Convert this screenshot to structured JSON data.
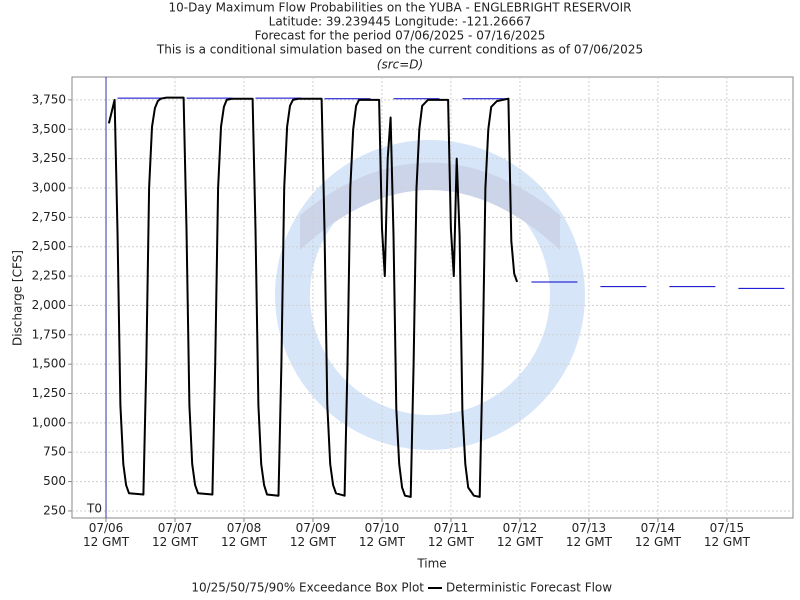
{
  "chart_data": {
    "type": "line",
    "title": "10-Day Maximum Flow Probabilities on the YUBA - ENGLEBRIGHT RESERVOIR",
    "subtitles": [
      "Latitude: 39.239445 Longitude: -121.26667",
      "Forecast for the period 07/06/2025 - 07/16/2025",
      "This is a conditional simulation based on the current conditions as of 07/06/2025",
      "(src=D)"
    ],
    "xlabel": "Time",
    "ylabel": "Discharge [CFS]",
    "t0": "07/06 12:00",
    "t0_label": "T0",
    "xlim": [
      "07/06 00:10",
      "07/16 11:00"
    ],
    "ylim": [
      190,
      3945
    ],
    "grid": true,
    "xticks": [
      {
        "value": "07/06 12:00",
        "label": "07/06\n12 GMT"
      },
      {
        "value": "07/07 12:00",
        "label": "07/07\n12 GMT"
      },
      {
        "value": "07/08 12:00",
        "label": "07/08\n12 GMT"
      },
      {
        "value": "07/09 12:00",
        "label": "07/09\n12 GMT"
      },
      {
        "value": "07/10 12:00",
        "label": "07/10\n12 GMT"
      },
      {
        "value": "07/11 12:00",
        "label": "07/11\n12 GMT"
      },
      {
        "value": "07/12 12:00",
        "label": "07/12\n12 GMT"
      },
      {
        "value": "07/13 12:00",
        "label": "07/13\n12 GMT"
      },
      {
        "value": "07/14 12:00",
        "label": "07/14\n12 GMT"
      },
      {
        "value": "07/15 12:00",
        "label": "07/15\n12 GMT"
      }
    ],
    "yticks": [
      250,
      500,
      750,
      {
        "value": 1000,
        "label": "1,000"
      },
      {
        "value": 1250,
        "label": "1,250"
      },
      {
        "value": 1500,
        "label": "1,500"
      },
      {
        "value": 1750,
        "label": "1,750"
      },
      {
        "value": 2000,
        "label": "2,000"
      },
      {
        "value": 2250,
        "label": "2,250"
      },
      {
        "value": 2500,
        "label": "2,500"
      },
      {
        "value": 2750,
        "label": "2,750"
      },
      {
        "value": 3000,
        "label": "3,000"
      },
      {
        "value": 3250,
        "label": "3,250"
      },
      {
        "value": 3500,
        "label": "3,500"
      },
      {
        "value": 3750,
        "label": "3,750"
      }
    ],
    "series": [
      {
        "name": "10/25/50/75/90% Exceedance Box Plot",
        "color": "#0000cc",
        "boxes": [
          {
            "start": "07/06 16:00",
            "end": "07/07 08:00",
            "value": 3765
          },
          {
            "start": "07/07 16:00",
            "end": "07/08 08:00",
            "value": 3765
          },
          {
            "start": "07/08 16:00",
            "end": "07/09 08:00",
            "value": 3765
          },
          {
            "start": "07/09 16:00",
            "end": "07/10 08:00",
            "value": 3760
          },
          {
            "start": "07/10 16:00",
            "end": "07/11 08:00",
            "value": 3760
          },
          {
            "start": "07/11 16:00",
            "end": "07/12 08:00",
            "value": 3760
          },
          {
            "start": "07/12 16:00",
            "end": "07/13 08:00",
            "value": 2200
          },
          {
            "start": "07/13 16:00",
            "end": "07/14 08:00",
            "value": 2160
          },
          {
            "start": "07/14 16:00",
            "end": "07/15 08:00",
            "value": 2160
          },
          {
            "start": "07/15 16:00",
            "end": "07/16 08:00",
            "value": 2145
          }
        ]
      },
      {
        "name": "Deterministic Forecast Flow",
        "color": "#000000",
        "x": [
          "07/06 13:00",
          "07/06 15:00",
          "07/06 16:00",
          "07/06 17:00",
          "07/06 18:00",
          "07/06 19:00",
          "07/06 20:00",
          "07/07 01:00",
          "07/07 02:00",
          "07/07 03:00",
          "07/07 04:00",
          "07/07 05:00",
          "07/07 06:00",
          "07/07 07:00",
          "07/07 09:00",
          "07/07 15:00",
          "07/07 16:00",
          "07/07 17:00",
          "07/07 18:00",
          "07/07 19:00",
          "07/07 20:00",
          "07/08 01:00",
          "07/08 02:00",
          "07/08 03:00",
          "07/08 04:00",
          "07/08 05:00",
          "07/08 06:00",
          "07/08 08:00",
          "07/08 15:00",
          "07/08 16:00",
          "07/08 17:00",
          "07/08 18:00",
          "07/08 19:00",
          "07/08 20:00",
          "07/09 00:00",
          "07/09 01:00",
          "07/09 02:00",
          "07/09 03:00",
          "07/09 04:00",
          "07/09 05:00",
          "07/09 07:00",
          "07/09 15:00",
          "07/09 16:00",
          "07/09 17:00",
          "07/09 18:00",
          "07/09 19:00",
          "07/09 20:00",
          "07/09 23:00",
          "07/10 00:00",
          "07/10 01:00",
          "07/10 02:00",
          "07/10 03:00",
          "07/10 04:00",
          "07/10 11:00",
          "07/10 12:00",
          "07/10 13:00",
          "07/10 14:00",
          "07/10 15:00",
          "07/10 16:00",
          "07/10 17:00",
          "07/10 18:00",
          "07/10 19:00",
          "07/10 20:00",
          "07/10 22:00",
          "07/10 23:00",
          "07/11 00:00",
          "07/11 01:00",
          "07/11 02:00",
          "07/11 04:00",
          "07/11 11:00",
          "07/11 12:00",
          "07/11 13:00",
          "07/11 14:00",
          "07/11 15:00",
          "07/11 16:00",
          "07/11 17:00",
          "07/11 18:00",
          "07/11 20:00",
          "07/11 22:00",
          "07/11 23:00",
          "07/12 00:00",
          "07/12 01:00",
          "07/12 02:00",
          "07/12 04:00",
          "07/12 06:00",
          "07/12 08:00",
          "07/12 09:00",
          "07/12 10:00",
          "07/12 11:00"
        ],
        "values": [
          3550,
          3750,
          2630,
          1150,
          650,
          470,
          400,
          390,
          1500,
          3000,
          3520,
          3680,
          3740,
          3760,
          3770,
          3770,
          2650,
          1150,
          650,
          470,
          400,
          390,
          1500,
          3000,
          3520,
          3690,
          3750,
          3760,
          3760,
          2650,
          1150,
          650,
          470,
          390,
          380,
          1500,
          3000,
          3520,
          3700,
          3750,
          3760,
          3760,
          2650,
          1150,
          650,
          470,
          400,
          380,
          1500,
          3000,
          3500,
          3700,
          3750,
          3750,
          2650,
          2250,
          3250,
          3600,
          2600,
          1120,
          650,
          450,
          380,
          370,
          1500,
          3000,
          3500,
          3700,
          3750,
          3750,
          2650,
          2250,
          3250,
          2600,
          1100,
          650,
          450,
          380,
          370,
          1500,
          3000,
          3500,
          3690,
          3740,
          3750,
          3760,
          2550,
          2270,
          2200
        ]
      }
    ]
  }
}
